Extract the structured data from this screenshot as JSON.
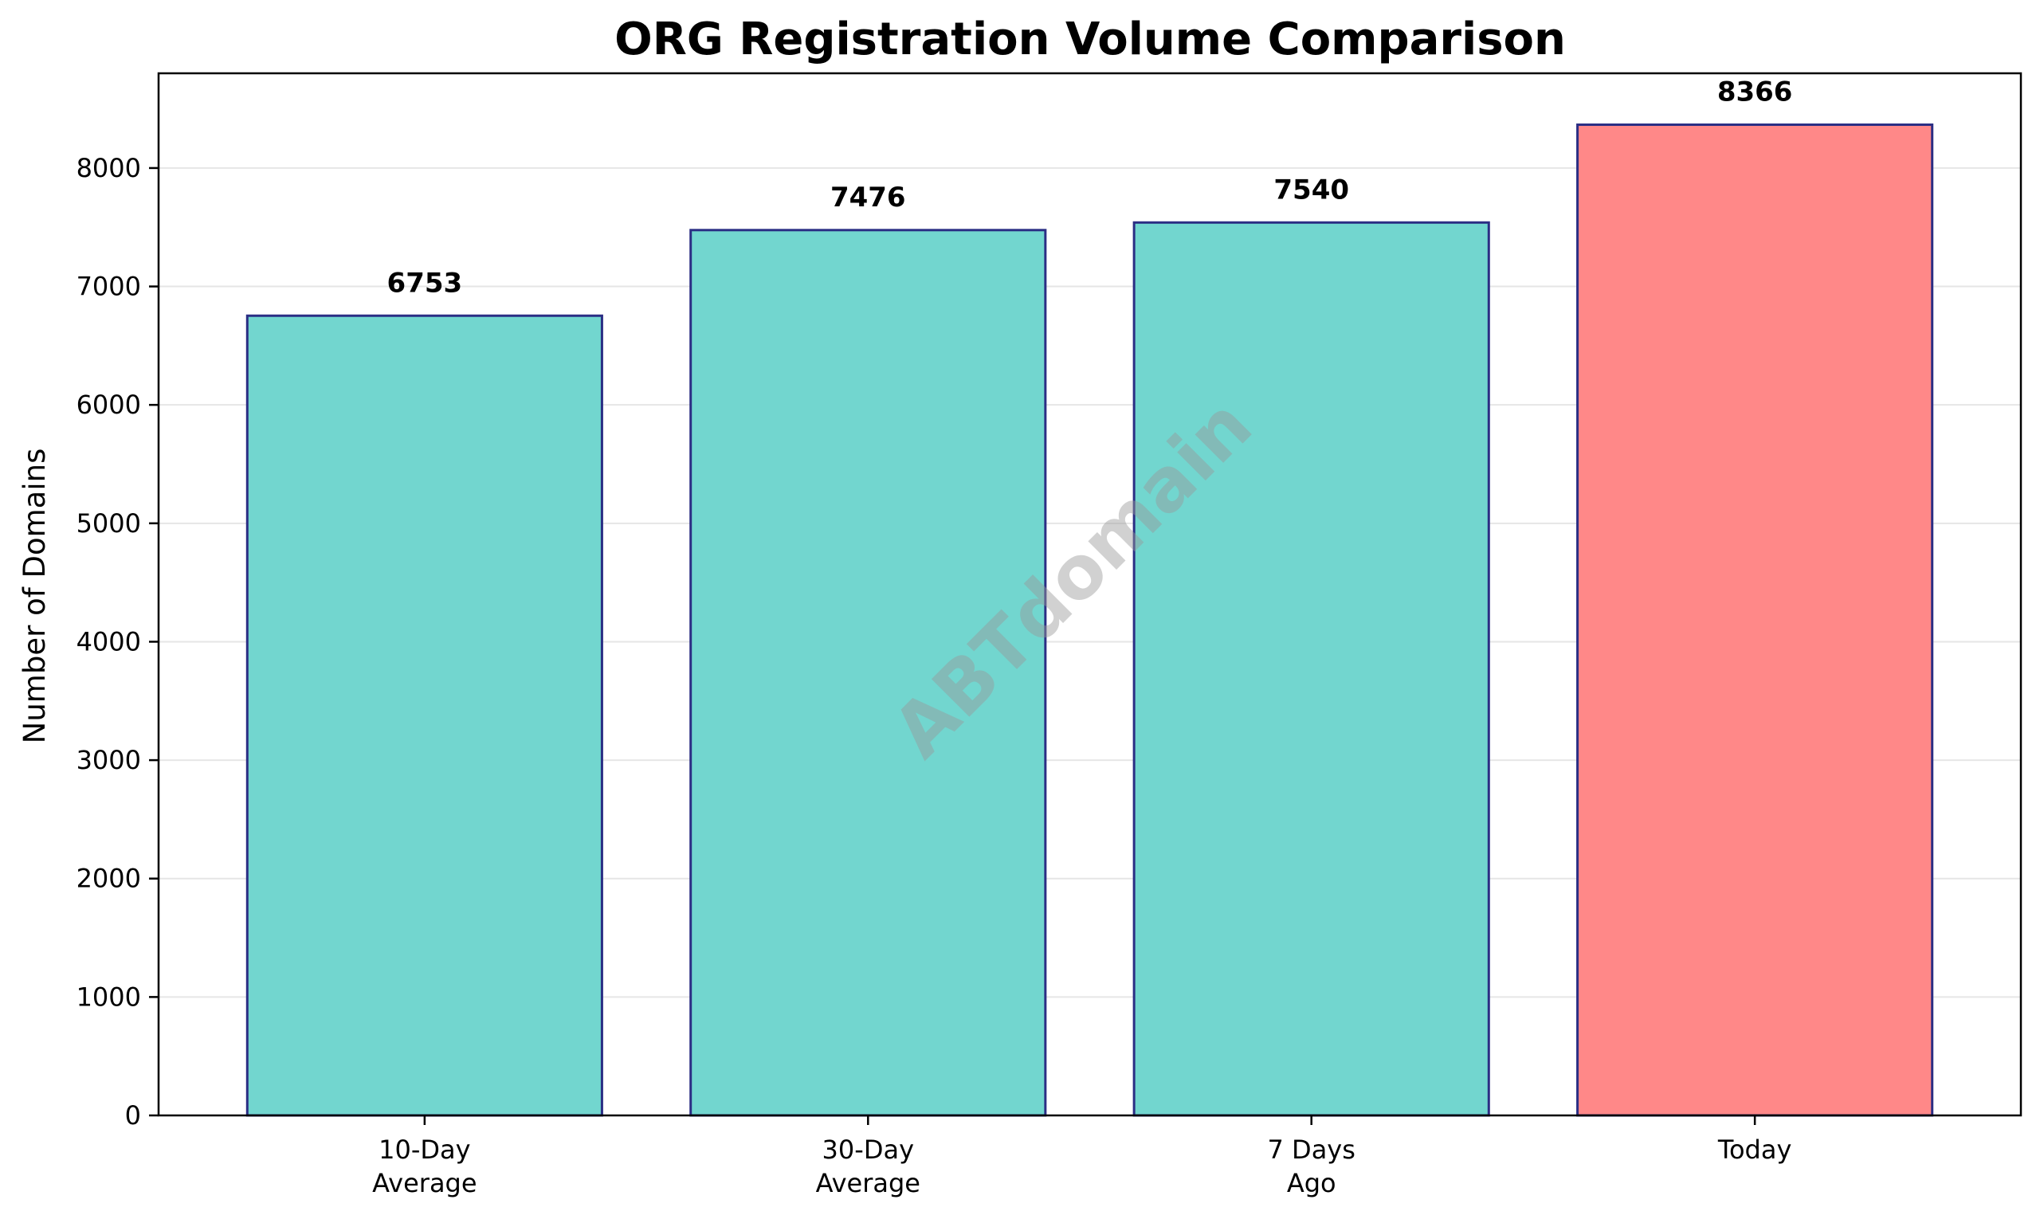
{
  "watermark": "ABTdomain",
  "colors": {
    "bar_default": "#72d6cf",
    "bar_highlight": "#ff8888",
    "bar_edge": "#2b2e84",
    "grid": "#e6e6e6",
    "axis": "#000000"
  },
  "chart_data": {
    "type": "bar",
    "title": "ORG Registration Volume Comparison",
    "xlabel": "",
    "ylabel": "Number of Domains",
    "categories": [
      [
        "10-Day",
        "Average"
      ],
      [
        "30-Day",
        "Average"
      ],
      [
        "7 Days",
        "Ago"
      ],
      [
        "Today"
      ]
    ],
    "values": [
      6753,
      7476,
      7540,
      8366
    ],
    "value_labels": [
      "6753",
      "7476",
      "7540",
      "8366"
    ],
    "highlight_index": 3,
    "ylim": [
      0,
      8800
    ],
    "yticks": [
      0,
      1000,
      2000,
      3000,
      4000,
      5000,
      6000,
      7000,
      8000
    ],
    "grid": "horizontal"
  }
}
